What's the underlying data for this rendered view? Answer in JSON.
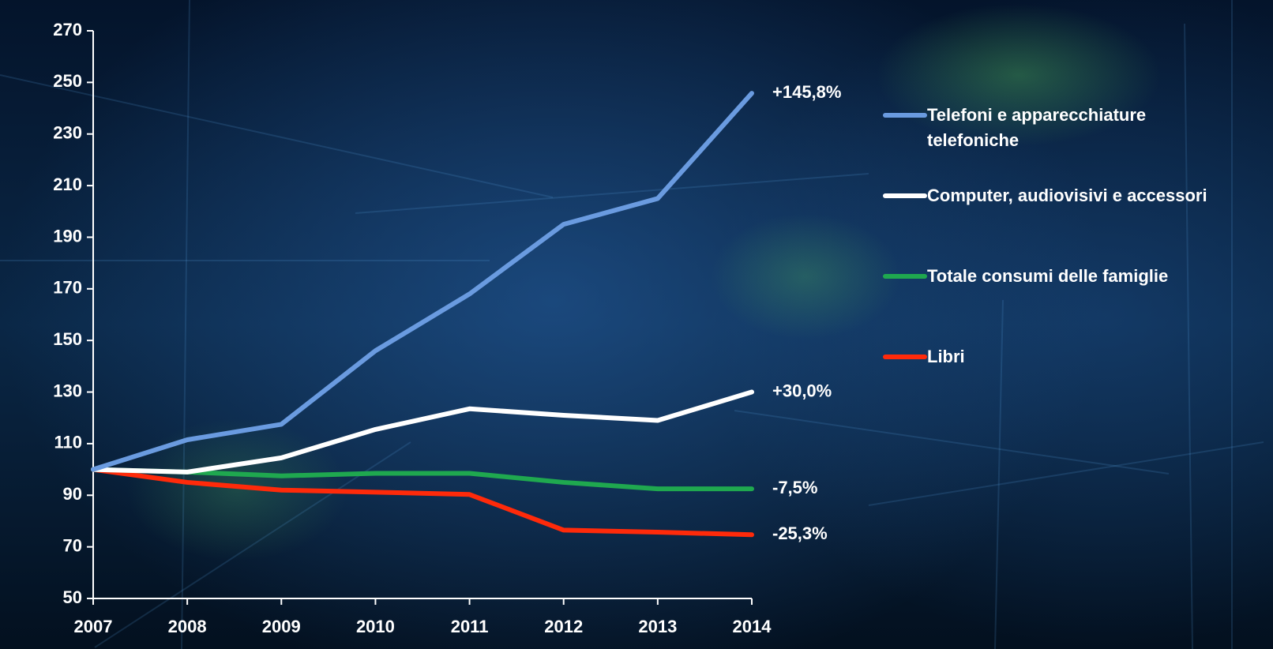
{
  "chart_data": {
    "type": "line",
    "categories": [
      "2007",
      "2008",
      "2009",
      "2010",
      "2011",
      "2012",
      "2013",
      "2014"
    ],
    "ylim": [
      50,
      270
    ],
    "yticks": [
      50,
      70,
      90,
      110,
      130,
      150,
      170,
      190,
      210,
      230,
      250,
      270
    ],
    "grid": false,
    "legend": "right",
    "series": [
      {
        "name": "Telefoni e apparecchiature telefoniche",
        "color": "#6a9be0",
        "values": [
          100,
          111.5,
          117.5,
          146,
          168,
          195,
          205,
          245.8
        ],
        "end_label": "+145,8%"
      },
      {
        "name": "Computer, audiovisivi e accessori",
        "color": "#ffffff",
        "values": [
          100,
          99,
          104.5,
          115.5,
          123.5,
          121,
          119,
          130
        ],
        "end_label": "+30,0%"
      },
      {
        "name": "Totale consumi delle famiglie",
        "color": "#1fa84f",
        "values": [
          100,
          99,
          97.5,
          98.5,
          98.5,
          95,
          92.5,
          92.5
        ],
        "end_label": "-7,5%"
      },
      {
        "name": "Libri",
        "color": "#ff2a0a",
        "values": [
          100,
          95,
          92,
          91.2,
          90.3,
          76.5,
          75.7,
          74.7
        ],
        "end_label": "-25,3%"
      }
    ]
  }
}
